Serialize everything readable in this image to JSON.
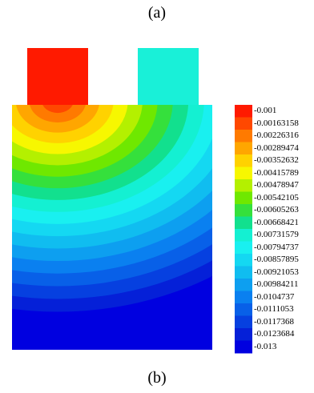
{
  "captions": {
    "top": "(a)",
    "bottom": "(b)"
  },
  "legend": {
    "values": [
      "-0.001",
      "-0.00163158",
      "-0.00226316",
      "-0.00289474",
      "-0.00352632",
      "-0.00415789",
      "-0.00478947",
      "-0.00542105",
      "-0.00605263",
      "-0.00668421",
      "-0.00731579",
      "-0.00794737",
      "-0.00857895",
      "-0.00921053",
      "-0.00984211",
      "-0.0104737",
      "-0.0111053",
      "-0.0117368",
      "-0.0123684",
      "-0.013"
    ],
    "colors": [
      "#ff1a00",
      "#ff4800",
      "#ff7a00",
      "#ffa600",
      "#ffd200",
      "#f7f700",
      "#b4f000",
      "#6fe800",
      "#35e03c",
      "#12e08e",
      "#14f0d2",
      "#19f0f0",
      "#14d8f2",
      "#10bdf0",
      "#0d9ff0",
      "#0a80f0",
      "#0860e8",
      "#0640e0",
      "#0520d8",
      "#0000e0"
    ]
  },
  "field": {
    "left_pad_color": "#ff1a00",
    "right_pad_color": "#19f0d8"
  }
}
